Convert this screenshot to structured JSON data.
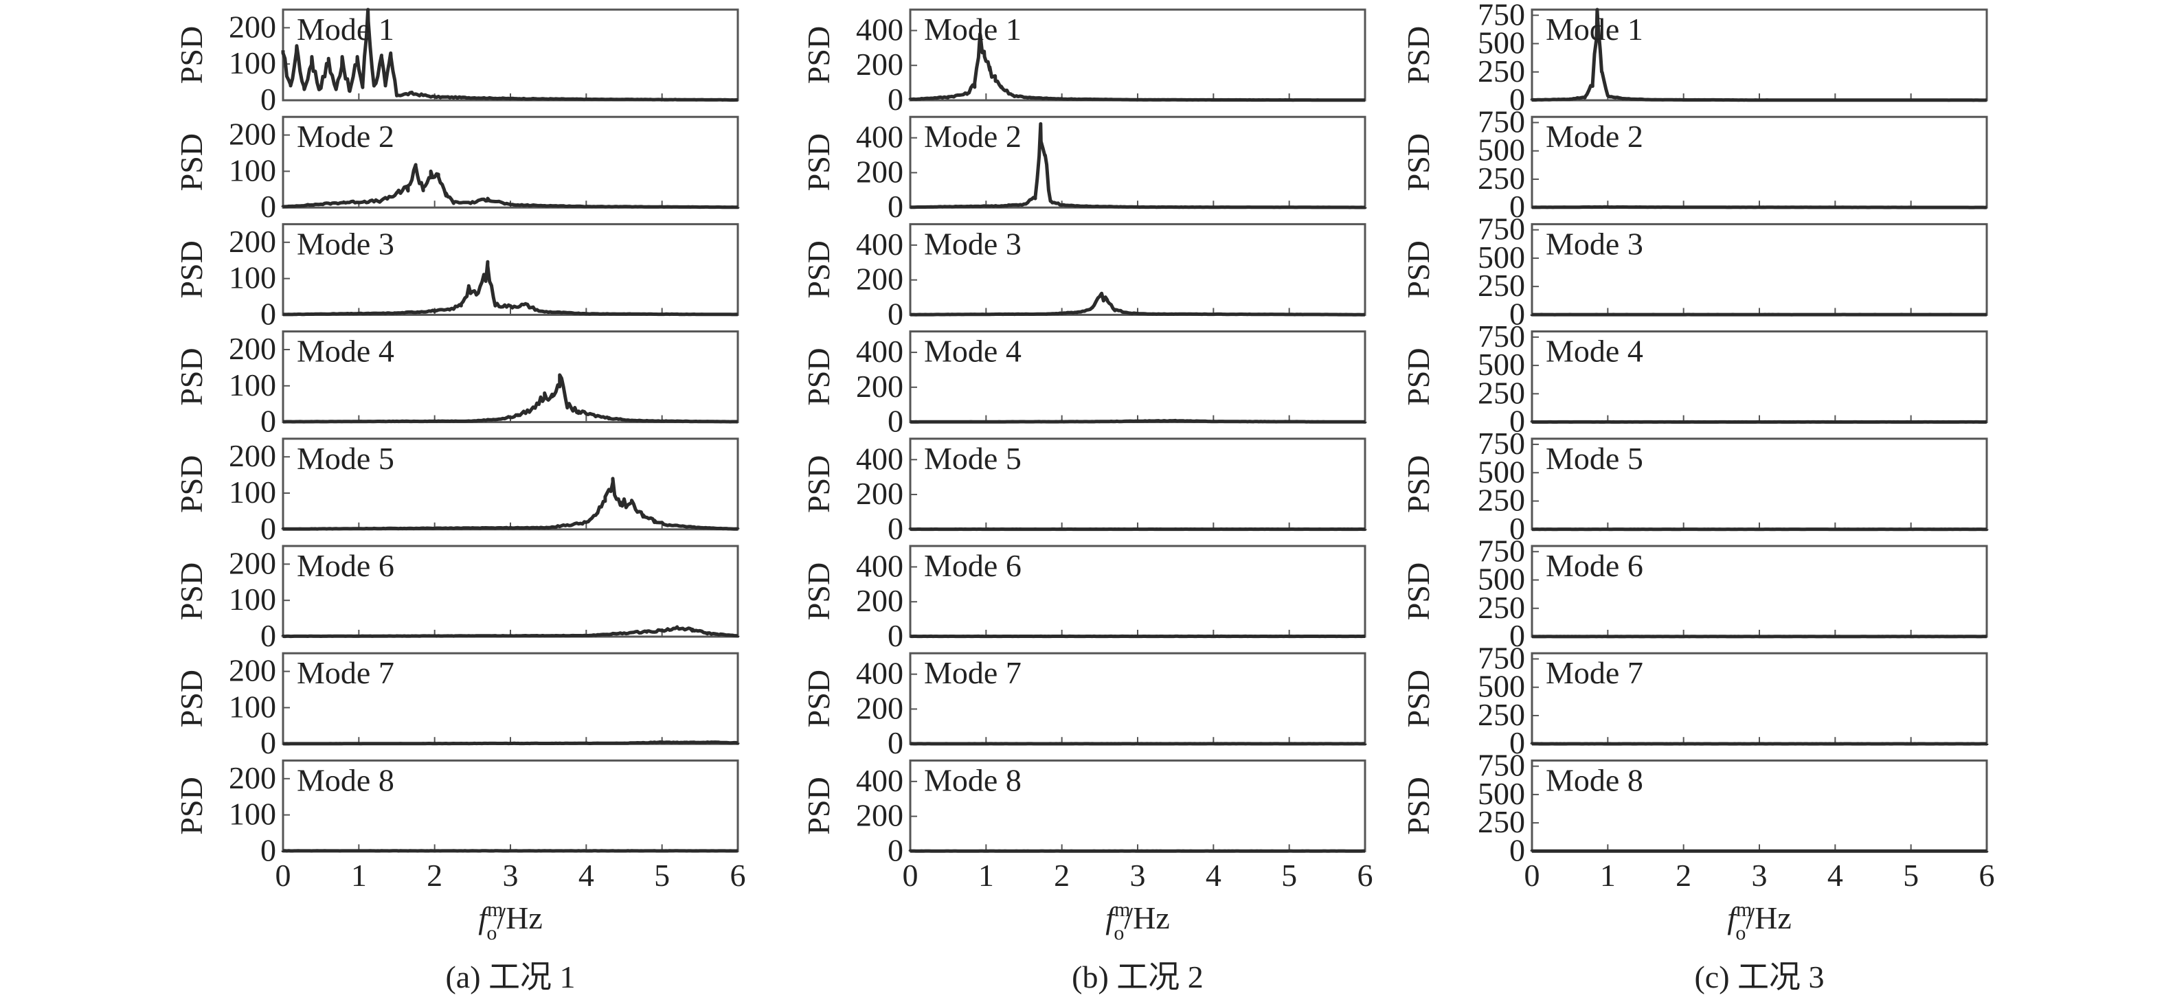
{
  "figure": {
    "ylabel": "PSD",
    "xlabel": {
      "symbol": "f",
      "superscript": "m",
      "subscript": "o",
      "unit": "/Hz"
    },
    "x_ticks": [
      "0",
      "1",
      "2",
      "3",
      "4",
      "5",
      "6"
    ],
    "panels": [
      {
        "caption": "(a) 工况 1",
        "y_ticks": [
          "0",
          "100",
          "200"
        ]
      },
      {
        "caption": "(b) 工况 2",
        "y_ticks": [
          "0",
          "200",
          "400"
        ]
      },
      {
        "caption": "(c) 工况 3",
        "y_ticks": [
          "0",
          "250",
          "500",
          "750"
        ]
      }
    ],
    "mode_labels": [
      "Mode 1",
      "Mode 2",
      "Mode 3",
      "Mode 4",
      "Mode 5",
      "Mode 6",
      "Mode 7",
      "Mode 8"
    ]
  },
  "chart_data": [
    {
      "type": "line",
      "caption": "(a) 工况 1",
      "xlabel": "f_o^m/Hz",
      "ylabel": "PSD",
      "xlim": [
        0,
        6
      ],
      "ylim": [
        0,
        250
      ],
      "x_ticks": [
        0,
        1,
        2,
        3,
        4,
        5,
        6
      ],
      "y_ticks": [
        0,
        100,
        200
      ],
      "grid": false,
      "subplots": [
        {
          "label": "Mode 1",
          "peaks": [
            [
              0.0,
              130
            ],
            [
              0.1,
              40
            ],
            [
              0.18,
              150
            ],
            [
              0.28,
              30
            ],
            [
              0.38,
              120
            ],
            [
              0.48,
              30
            ],
            [
              0.6,
              115
            ],
            [
              0.7,
              30
            ],
            [
              0.78,
              120
            ],
            [
              0.88,
              25
            ],
            [
              0.98,
              120
            ],
            [
              1.05,
              40
            ],
            [
              1.12,
              260
            ],
            [
              1.2,
              40
            ],
            [
              1.3,
              120
            ],
            [
              1.35,
              40
            ],
            [
              1.42,
              130
            ],
            [
              1.5,
              15
            ],
            [
              1.7,
              20
            ],
            [
              2.0,
              10
            ],
            [
              3.0,
              5
            ],
            [
              4.0,
              3
            ],
            [
              5.0,
              2
            ],
            [
              6.0,
              1
            ]
          ]
        },
        {
          "label": "Mode 2",
          "peaks": [
            [
              0.0,
              2
            ],
            [
              0.8,
              15
            ],
            [
              1.3,
              20
            ],
            [
              1.5,
              40
            ],
            [
              1.65,
              60
            ],
            [
              1.75,
              115
            ],
            [
              1.85,
              55
            ],
            [
              1.95,
              100
            ],
            [
              2.05,
              85
            ],
            [
              2.15,
              40
            ],
            [
              2.25,
              15
            ],
            [
              2.5,
              15
            ],
            [
              2.7,
              25
            ],
            [
              3.0,
              8
            ],
            [
              4.0,
              3
            ],
            [
              6.0,
              1
            ]
          ]
        },
        {
          "label": "Mode 3",
          "peaks": [
            [
              0.0,
              1
            ],
            [
              1.5,
              5
            ],
            [
              2.0,
              12
            ],
            [
              2.2,
              15
            ],
            [
              2.35,
              30
            ],
            [
              2.45,
              80
            ],
            [
              2.55,
              55
            ],
            [
              2.7,
              135
            ],
            [
              2.8,
              30
            ],
            [
              3.0,
              25
            ],
            [
              3.2,
              30
            ],
            [
              3.4,
              10
            ],
            [
              4.0,
              3
            ],
            [
              6.0,
              1
            ]
          ]
        },
        {
          "label": "Mode 4",
          "peaks": [
            [
              0.0,
              1
            ],
            [
              2.5,
              3
            ],
            [
              2.9,
              10
            ],
            [
              3.1,
              20
            ],
            [
              3.3,
              40
            ],
            [
              3.45,
              80
            ],
            [
              3.55,
              70
            ],
            [
              3.65,
              130
            ],
            [
              3.75,
              50
            ],
            [
              3.9,
              30
            ],
            [
              4.1,
              20
            ],
            [
              4.3,
              12
            ],
            [
              4.6,
              5
            ],
            [
              5.0,
              3
            ],
            [
              6.0,
              1
            ]
          ]
        },
        {
          "label": "Mode 5",
          "peaks": [
            [
              0.0,
              1
            ],
            [
              3.5,
              5
            ],
            [
              4.0,
              20
            ],
            [
              4.15,
              45
            ],
            [
              4.25,
              90
            ],
            [
              4.35,
              140
            ],
            [
              4.45,
              75
            ],
            [
              4.6,
              80
            ],
            [
              4.75,
              40
            ],
            [
              4.9,
              25
            ],
            [
              5.1,
              12
            ],
            [
              5.5,
              5
            ],
            [
              6.0,
              1
            ]
          ]
        },
        {
          "label": "Mode 6",
          "peaks": [
            [
              0.0,
              1
            ],
            [
              4.0,
              3
            ],
            [
              4.5,
              10
            ],
            [
              4.8,
              15
            ],
            [
              5.0,
              18
            ],
            [
              5.2,
              25
            ],
            [
              5.4,
              20
            ],
            [
              5.6,
              10
            ],
            [
              6.0,
              2
            ]
          ]
        },
        {
          "label": "Mode 7",
          "peaks": [
            [
              0.0,
              0.5
            ],
            [
              4.5,
              2
            ],
            [
              5.0,
              5
            ],
            [
              5.3,
              4
            ],
            [
              5.6,
              5
            ],
            [
              6.0,
              3
            ]
          ]
        },
        {
          "label": "Mode 8",
          "peaks": [
            [
              0.0,
              1
            ],
            [
              3.0,
              1
            ],
            [
              6.0,
              1
            ]
          ]
        }
      ]
    },
    {
      "type": "line",
      "caption": "(b) 工况 2",
      "xlabel": "f_o^m/Hz",
      "ylabel": "PSD",
      "xlim": [
        0,
        6
      ],
      "ylim": [
        0,
        520
      ],
      "x_ticks": [
        0,
        1,
        2,
        3,
        4,
        5,
        6
      ],
      "y_ticks": [
        0,
        200,
        400
      ],
      "grid": false,
      "subplots": [
        {
          "label": "Mode 1",
          "peaks": [
            [
              0.0,
              5
            ],
            [
              0.5,
              20
            ],
            [
              0.75,
              40
            ],
            [
              0.85,
              100
            ],
            [
              0.92,
              380
            ],
            [
              0.98,
              250
            ],
            [
              1.05,
              190
            ],
            [
              1.12,
              140
            ],
            [
              1.2,
              80
            ],
            [
              1.35,
              30
            ],
            [
              1.6,
              15
            ],
            [
              2.0,
              8
            ],
            [
              3.0,
              3
            ],
            [
              6.0,
              1
            ]
          ]
        },
        {
          "label": "Mode 2",
          "peaks": [
            [
              0.0,
              2
            ],
            [
              1.2,
              10
            ],
            [
              1.5,
              20
            ],
            [
              1.65,
              60
            ],
            [
              1.72,
              480
            ],
            [
              1.78,
              300
            ],
            [
              1.85,
              40
            ],
            [
              2.0,
              15
            ],
            [
              2.3,
              8
            ],
            [
              3.0,
              3
            ],
            [
              6.0,
              1
            ]
          ]
        },
        {
          "label": "Mode 3",
          "peaks": [
            [
              0.0,
              1
            ],
            [
              1.8,
              5
            ],
            [
              2.2,
              15
            ],
            [
              2.4,
              40
            ],
            [
              2.52,
              120
            ],
            [
              2.6,
              80
            ],
            [
              2.7,
              30
            ],
            [
              2.9,
              10
            ],
            [
              3.2,
              5
            ],
            [
              6.0,
              1
            ]
          ]
        },
        {
          "label": "Mode 4",
          "peaks": [
            [
              0.0,
              1
            ],
            [
              2.5,
              3
            ],
            [
              3.0,
              6
            ],
            [
              3.5,
              8
            ],
            [
              4.0,
              4
            ],
            [
              6.0,
              1
            ]
          ]
        },
        {
          "label": "Mode 5",
          "peaks": [
            [
              0.0,
              1
            ],
            [
              6.0,
              1
            ]
          ]
        },
        {
          "label": "Mode 6",
          "peaks": [
            [
              0.0,
              2
            ],
            [
              6.0,
              2
            ]
          ]
        },
        {
          "label": "Mode 7",
          "peaks": [
            [
              0.0,
              1
            ],
            [
              6.0,
              1
            ]
          ]
        },
        {
          "label": "Mode 8",
          "peaks": [
            [
              0.0,
              1
            ],
            [
              6.0,
              1
            ]
          ]
        }
      ]
    },
    {
      "type": "line",
      "caption": "(c) 工况 3",
      "xlabel": "f_o^m/Hz",
      "ylabel": "PSD",
      "xlim": [
        0,
        6
      ],
      "ylim": [
        0,
        800
      ],
      "x_ticks": [
        0,
        1,
        2,
        3,
        4,
        5,
        6
      ],
      "y_ticks": [
        0,
        250,
        500,
        750
      ],
      "grid": false,
      "subplots": [
        {
          "label": "Mode 1",
          "peaks": [
            [
              0.0,
              3
            ],
            [
              0.5,
              10
            ],
            [
              0.7,
              30
            ],
            [
              0.8,
              150
            ],
            [
              0.86,
              820
            ],
            [
              0.92,
              250
            ],
            [
              1.0,
              40
            ],
            [
              1.2,
              15
            ],
            [
              1.6,
              5
            ],
            [
              3.0,
              2
            ],
            [
              6.0,
              1
            ]
          ]
        },
        {
          "label": "Mode 2",
          "peaks": [
            [
              0.0,
              2
            ],
            [
              1.0,
              5
            ],
            [
              2.0,
              3
            ],
            [
              6.0,
              1
            ]
          ]
        },
        {
          "label": "Mode 3",
          "peaks": [
            [
              0.0,
              2
            ],
            [
              6.0,
              2
            ]
          ]
        },
        {
          "label": "Mode 4",
          "peaks": [
            [
              0.0,
              1
            ],
            [
              6.0,
              1
            ]
          ]
        },
        {
          "label": "Mode 5",
          "peaks": [
            [
              0.0,
              1
            ],
            [
              6.0,
              1
            ]
          ]
        },
        {
          "label": "Mode 6",
          "peaks": [
            [
              0.0,
              1
            ],
            [
              6.0,
              1
            ]
          ]
        },
        {
          "label": "Mode 7",
          "peaks": [
            [
              0.0,
              1
            ],
            [
              6.0,
              1
            ]
          ]
        },
        {
          "label": "Mode 8",
          "peaks": [
            [
              0.0,
              1
            ],
            [
              6.0,
              1
            ]
          ]
        }
      ]
    }
  ]
}
